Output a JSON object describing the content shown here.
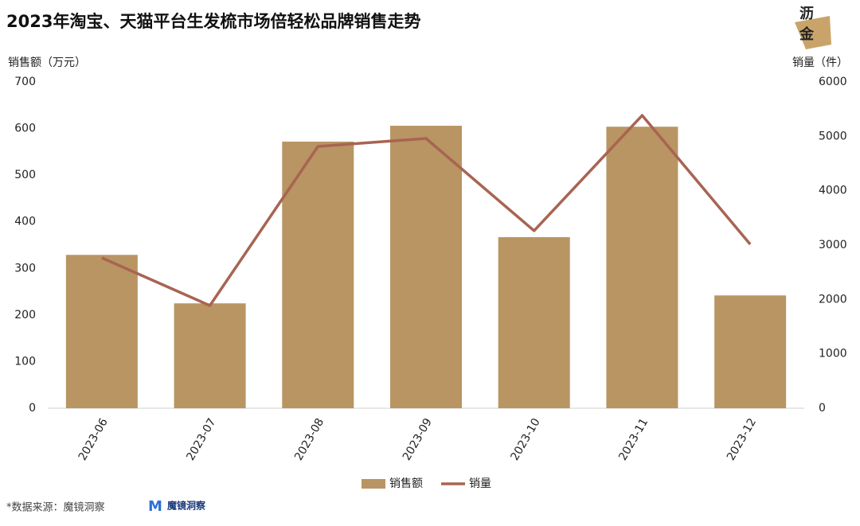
{
  "chart_data": {
    "type": "bar",
    "title": "2023年淘宝、天猫平台生发梳市场倍轻松品牌销售走势",
    "y_label": "销售额（万元）",
    "y2_label": "销量（件）",
    "categories": [
      "2023-06",
      "2023-07",
      "2023-08",
      "2023-09",
      "2023-10",
      "2023-11",
      "2023-12"
    ],
    "series": [
      {
        "name": "销售额",
        "color": "#b89563",
        "values": [
          329,
          225,
          572,
          606,
          367,
          604,
          242
        ]
      },
      {
        "name": "销量",
        "color": "#a86452",
        "axis": "y2",
        "values": [
          2766,
          1888,
          4815,
          4961,
          3264,
          5385,
          3015
        ]
      }
    ],
    "ylim": [
      0,
      700
    ],
    "yticks": [
      0,
      100,
      200,
      300,
      400,
      500,
      600,
      700
    ],
    "y2lim": [
      0,
      6000
    ],
    "y2ticks": [
      0,
      1000,
      2000,
      3000,
      4000,
      5000,
      6000
    ],
    "legend": "bottom",
    "source": "*数据来源：魔镜洞察",
    "source_logo": "魔镜洞察",
    "logo": [
      "沥",
      "金"
    ]
  }
}
